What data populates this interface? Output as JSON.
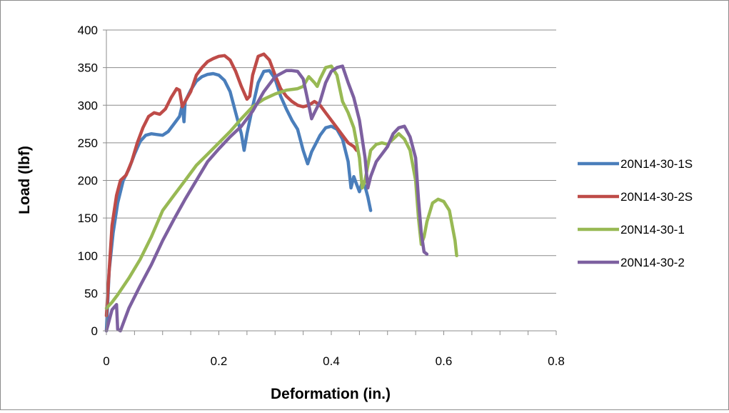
{
  "chart_data": {
    "type": "line",
    "title": "",
    "xlabel": "Deformation (in.)",
    "ylabel": "Load (lbf)",
    "xlim": [
      0,
      0.8
    ],
    "ylim": [
      0,
      400
    ],
    "x_ticks": [
      0,
      0.2,
      0.4,
      0.6,
      0.8
    ],
    "y_ticks": [
      0,
      50,
      100,
      150,
      200,
      250,
      300,
      350,
      400
    ],
    "x_tick_labels": [
      "0",
      "0.2",
      "0.4",
      "0.6",
      "0.8"
    ],
    "y_tick_labels": [
      "0",
      "50",
      "100",
      "150",
      "200",
      "250",
      "300",
      "350",
      "400"
    ],
    "grid": "horizontal",
    "legend_position": "right",
    "series": [
      {
        "name": "20N14-30-1S",
        "color": "#4a7ebb",
        "points": [
          [
            0,
            0
          ],
          [
            0.005,
            80
          ],
          [
            0.012,
            130
          ],
          [
            0.02,
            170
          ],
          [
            0.03,
            200
          ],
          [
            0.04,
            215
          ],
          [
            0.05,
            235
          ],
          [
            0.06,
            252
          ],
          [
            0.07,
            260
          ],
          [
            0.08,
            262
          ],
          [
            0.09,
            261
          ],
          [
            0.1,
            260
          ],
          [
            0.11,
            265
          ],
          [
            0.12,
            275
          ],
          [
            0.13,
            285
          ],
          [
            0.135,
            300
          ],
          [
            0.138,
            278
          ],
          [
            0.14,
            305
          ],
          [
            0.15,
            320
          ],
          [
            0.16,
            332
          ],
          [
            0.17,
            338
          ],
          [
            0.18,
            341
          ],
          [
            0.19,
            342
          ],
          [
            0.2,
            340
          ],
          [
            0.21,
            333
          ],
          [
            0.22,
            318
          ],
          [
            0.23,
            290
          ],
          [
            0.24,
            262
          ],
          [
            0.245,
            240
          ],
          [
            0.25,
            262
          ],
          [
            0.26,
            298
          ],
          [
            0.27,
            330
          ],
          [
            0.28,
            345
          ],
          [
            0.29,
            346
          ],
          [
            0.3,
            335
          ],
          [
            0.31,
            312
          ],
          [
            0.32,
            295
          ],
          [
            0.33,
            280
          ],
          [
            0.34,
            268
          ],
          [
            0.35,
            240
          ],
          [
            0.358,
            222
          ],
          [
            0.365,
            238
          ],
          [
            0.38,
            260
          ],
          [
            0.39,
            270
          ],
          [
            0.4,
            272
          ],
          [
            0.41,
            268
          ],
          [
            0.42,
            255
          ],
          [
            0.43,
            225
          ],
          [
            0.435,
            190
          ],
          [
            0.44,
            205
          ],
          [
            0.445,
            195
          ],
          [
            0.45,
            185
          ],
          [
            0.455,
            198
          ],
          [
            0.46,
            192
          ],
          [
            0.465,
            178
          ],
          [
            0.47,
            160
          ]
        ]
      },
      {
        "name": "20N14-30-2S",
        "color": "#be4b48",
        "points": [
          [
            0,
            20
          ],
          [
            0.005,
            80
          ],
          [
            0.01,
            140
          ],
          [
            0.018,
            180
          ],
          [
            0.025,
            200
          ],
          [
            0.035,
            207
          ],
          [
            0.045,
            225
          ],
          [
            0.055,
            250
          ],
          [
            0.065,
            270
          ],
          [
            0.075,
            285
          ],
          [
            0.085,
            290
          ],
          [
            0.095,
            288
          ],
          [
            0.105,
            295
          ],
          [
            0.115,
            310
          ],
          [
            0.125,
            322
          ],
          [
            0.13,
            320
          ],
          [
            0.135,
            298
          ],
          [
            0.14,
            305
          ],
          [
            0.15,
            318
          ],
          [
            0.16,
            340
          ],
          [
            0.17,
            350
          ],
          [
            0.18,
            358
          ],
          [
            0.19,
            362
          ],
          [
            0.2,
            365
          ],
          [
            0.21,
            366
          ],
          [
            0.22,
            360
          ],
          [
            0.23,
            345
          ],
          [
            0.24,
            325
          ],
          [
            0.25,
            308
          ],
          [
            0.255,
            312
          ],
          [
            0.26,
            340
          ],
          [
            0.27,
            365
          ],
          [
            0.28,
            368
          ],
          [
            0.29,
            360
          ],
          [
            0.3,
            340
          ],
          [
            0.31,
            322
          ],
          [
            0.32,
            312
          ],
          [
            0.33,
            305
          ],
          [
            0.34,
            300
          ],
          [
            0.35,
            298
          ],
          [
            0.36,
            300
          ],
          [
            0.37,
            305
          ],
          [
            0.38,
            300
          ],
          [
            0.39,
            290
          ],
          [
            0.4,
            280
          ],
          [
            0.41,
            270
          ],
          [
            0.42,
            260
          ],
          [
            0.43,
            250
          ],
          [
            0.44,
            245
          ],
          [
            0.445,
            240
          ]
        ]
      },
      {
        "name": "20N14-30-1",
        "color": "#98b954",
        "points": [
          [
            0,
            30
          ],
          [
            0.01,
            38
          ],
          [
            0.02,
            48
          ],
          [
            0.04,
            70
          ],
          [
            0.06,
            95
          ],
          [
            0.08,
            125
          ],
          [
            0.1,
            160
          ],
          [
            0.12,
            180
          ],
          [
            0.14,
            200
          ],
          [
            0.16,
            220
          ],
          [
            0.18,
            235
          ],
          [
            0.2,
            250
          ],
          [
            0.22,
            265
          ],
          [
            0.24,
            282
          ],
          [
            0.26,
            298
          ],
          [
            0.28,
            308
          ],
          [
            0.3,
            315
          ],
          [
            0.32,
            320
          ],
          [
            0.34,
            322
          ],
          [
            0.35,
            325
          ],
          [
            0.36,
            338
          ],
          [
            0.37,
            330
          ],
          [
            0.375,
            325
          ],
          [
            0.38,
            335
          ],
          [
            0.39,
            350
          ],
          [
            0.4,
            352
          ],
          [
            0.41,
            340
          ],
          [
            0.42,
            305
          ],
          [
            0.43,
            290
          ],
          [
            0.44,
            270
          ],
          [
            0.45,
            230
          ],
          [
            0.455,
            190
          ],
          [
            0.46,
            200
          ],
          [
            0.47,
            240
          ],
          [
            0.48,
            248
          ],
          [
            0.49,
            250
          ],
          [
            0.5,
            248
          ],
          [
            0.51,
            255
          ],
          [
            0.52,
            262
          ],
          [
            0.53,
            255
          ],
          [
            0.54,
            240
          ],
          [
            0.55,
            200
          ],
          [
            0.555,
            150
          ],
          [
            0.56,
            115
          ],
          [
            0.565,
            125
          ],
          [
            0.57,
            145
          ],
          [
            0.58,
            170
          ],
          [
            0.59,
            175
          ],
          [
            0.6,
            172
          ],
          [
            0.61,
            160
          ],
          [
            0.62,
            120
          ],
          [
            0.623,
            100
          ]
        ]
      },
      {
        "name": "20N14-30-2",
        "color": "#7d60a0",
        "points": [
          [
            0,
            0
          ],
          [
            0.01,
            28
          ],
          [
            0.018,
            35
          ],
          [
            0.02,
            2
          ],
          [
            0.025,
            0
          ],
          [
            0.03,
            10
          ],
          [
            0.04,
            30
          ],
          [
            0.06,
            60
          ],
          [
            0.08,
            88
          ],
          [
            0.1,
            120
          ],
          [
            0.12,
            148
          ],
          [
            0.14,
            175
          ],
          [
            0.16,
            200
          ],
          [
            0.18,
            225
          ],
          [
            0.2,
            242
          ],
          [
            0.22,
            258
          ],
          [
            0.24,
            272
          ],
          [
            0.26,
            292
          ],
          [
            0.28,
            318
          ],
          [
            0.3,
            338
          ],
          [
            0.32,
            346
          ],
          [
            0.33,
            346
          ],
          [
            0.34,
            345
          ],
          [
            0.35,
            335
          ],
          [
            0.36,
            300
          ],
          [
            0.365,
            282
          ],
          [
            0.37,
            290
          ],
          [
            0.38,
            305
          ],
          [
            0.39,
            330
          ],
          [
            0.4,
            345
          ],
          [
            0.41,
            350
          ],
          [
            0.42,
            352
          ],
          [
            0.43,
            330
          ],
          [
            0.44,
            310
          ],
          [
            0.45,
            280
          ],
          [
            0.46,
            230
          ],
          [
            0.465,
            190
          ],
          [
            0.47,
            205
          ],
          [
            0.48,
            225
          ],
          [
            0.49,
            235
          ],
          [
            0.5,
            245
          ],
          [
            0.51,
            262
          ],
          [
            0.52,
            270
          ],
          [
            0.53,
            272
          ],
          [
            0.54,
            258
          ],
          [
            0.55,
            230
          ],
          [
            0.555,
            175
          ],
          [
            0.56,
            130
          ],
          [
            0.565,
            105
          ],
          [
            0.57,
            102
          ]
        ]
      }
    ]
  }
}
